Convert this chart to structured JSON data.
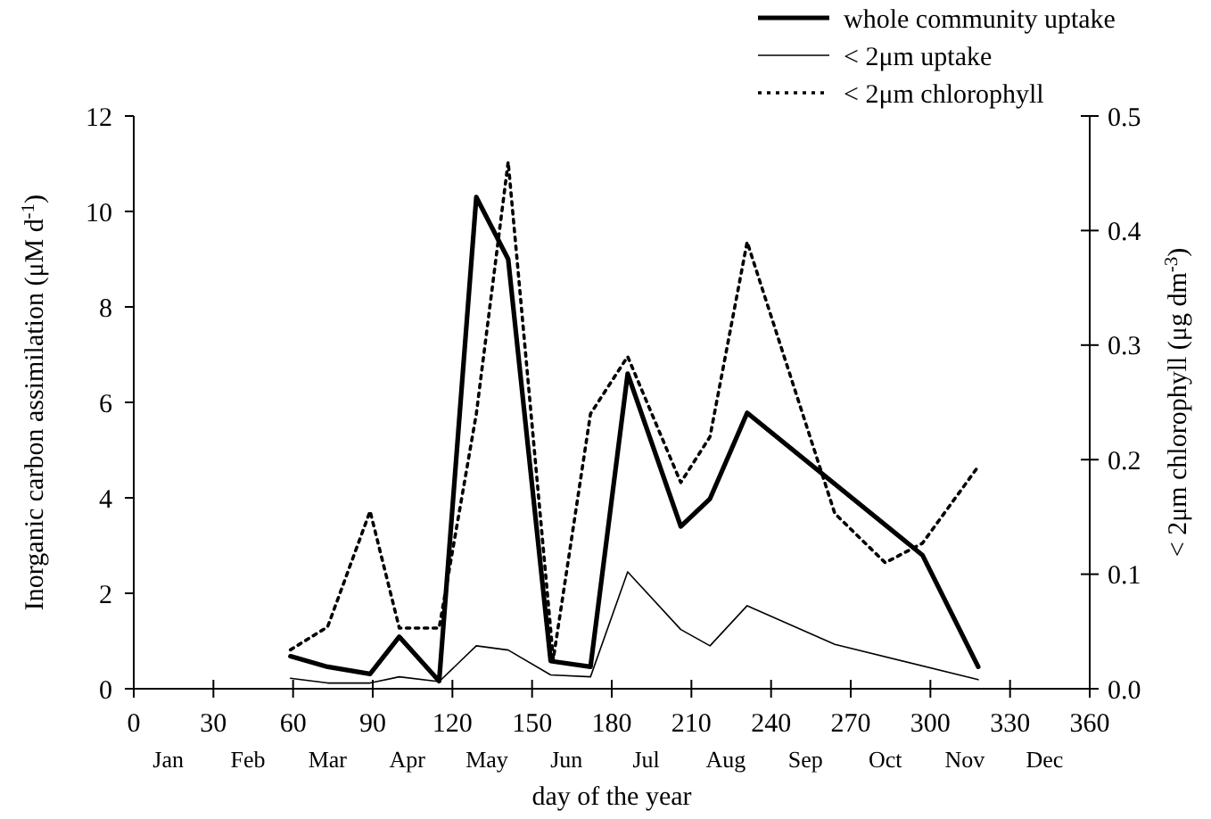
{
  "chart_data": {
    "type": "line",
    "xlabel": "day of the year",
    "ylabel": "Inorganic carbon assimilation (μM d$^{-1}$)",
    "y2label": "< 2μm chlorophyll (μg dm$^{-3}$)",
    "xlim": [
      0,
      360
    ],
    "xticks": [
      0,
      30,
      60,
      90,
      120,
      150,
      180,
      210,
      240,
      270,
      300,
      330,
      360
    ],
    "annotations": [
      "Jan",
      "Feb",
      "Mar",
      "Apr",
      "May",
      "Jun",
      "Jul",
      "Aug",
      "Sep",
      "Oct",
      "Nov",
      "Dec"
    ],
    "ylim": [
      0,
      12
    ],
    "yticks": [
      0,
      2,
      4,
      6,
      8,
      10,
      12
    ],
    "y2lim": [
      0,
      0.5
    ],
    "y2ticks": [
      {
        "value": 0,
        "label": "0.0"
      },
      0.1,
      0.2,
      0.3,
      0.4,
      0.5
    ],
    "legend": "top right",
    "marker": "none",
    "grid": false,
    "series": [
      {
        "name": "whole community uptake",
        "color": "#000000",
        "line_style": "solid",
        "x": [
          59,
          73,
          89,
          100,
          115,
          129,
          141,
          157,
          172,
          186,
          206,
          217,
          231,
          297,
          318
        ],
        "values": [
          0.68,
          0.46,
          0.31,
          1.09,
          0.16,
          10.3,
          9.0,
          0.58,
          0.46,
          6.6,
          3.4,
          3.98,
          5.78,
          2.8,
          0.46
        ]
      },
      {
        "name": "< 2μm uptake",
        "color": "#000000",
        "line_style": "solid",
        "x": [
          59,
          73,
          89,
          100,
          115,
          129,
          141,
          157,
          172,
          186,
          206,
          217,
          231,
          264,
          318
        ],
        "values": [
          0.22,
          0.12,
          0.12,
          0.25,
          0.15,
          0.9,
          0.81,
          0.29,
          0.25,
          2.45,
          1.24,
          0.9,
          1.74,
          0.93,
          0.19
        ]
      },
      {
        "name": "< 2μm chlorophyll",
        "color": "#000000",
        "line_style": "dotted",
        "axis": "y2",
        "x": [
          59,
          73,
          89,
          100,
          115,
          129,
          141,
          158,
          172,
          186,
          206,
          217,
          231,
          264,
          283,
          297,
          318
        ],
        "values": [
          0.034,
          0.054,
          0.155,
          0.053,
          0.053,
          0.24,
          0.46,
          0.026,
          0.24,
          0.29,
          0.18,
          0.22,
          0.39,
          0.153,
          0.11,
          0.127,
          0.194
        ]
      }
    ]
  }
}
